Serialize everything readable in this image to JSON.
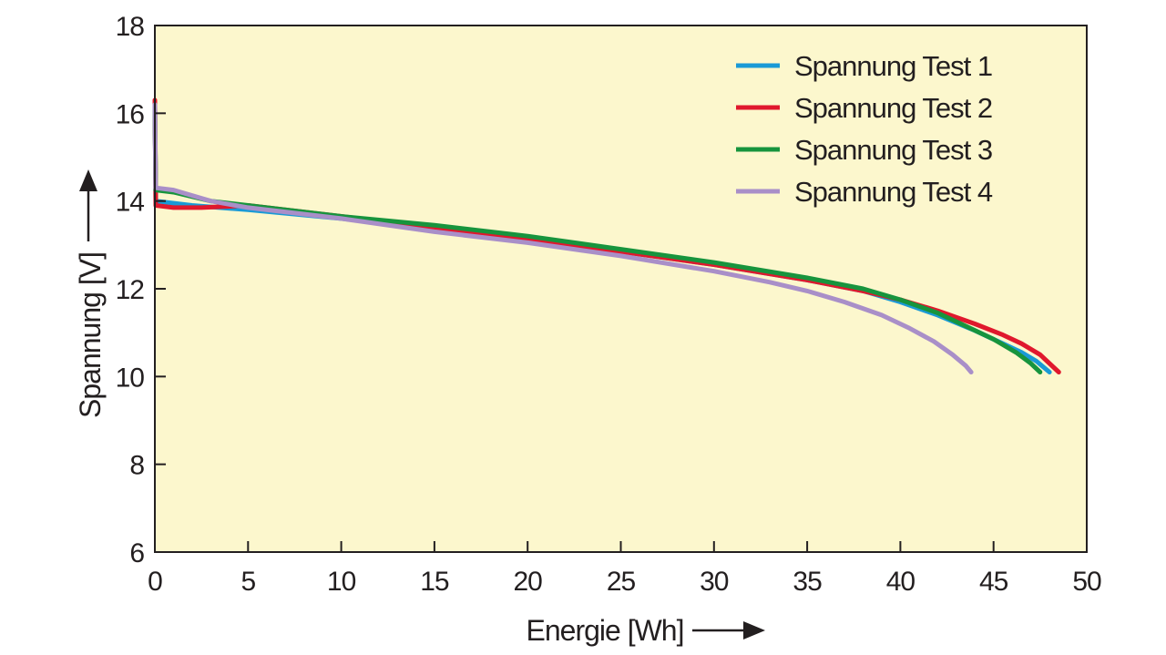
{
  "chart_data": {
    "type": "line",
    "xlabel": "Energie [Wh]",
    "ylabel": "Spannung [V]",
    "xlim": [
      0,
      50
    ],
    "ylim": [
      6,
      18
    ],
    "xticks": [
      0,
      5,
      10,
      15,
      20,
      25,
      30,
      35,
      40,
      45,
      50
    ],
    "yticks": [
      6,
      8,
      10,
      12,
      14,
      16,
      18
    ],
    "grid": false,
    "legend_position": "top-right",
    "background_color": "#fcf7cd",
    "series": [
      {
        "name": "Spannung Test 1",
        "color": "#1a9ad6",
        "points": [
          [
            0,
            16.2
          ],
          [
            0.05,
            14.0
          ],
          [
            2,
            13.9
          ],
          [
            5,
            13.8
          ],
          [
            10,
            13.6
          ],
          [
            15,
            13.35
          ],
          [
            20,
            13.1
          ],
          [
            25,
            12.85
          ],
          [
            30,
            12.55
          ],
          [
            35,
            12.2
          ],
          [
            38,
            11.95
          ],
          [
            40,
            11.7
          ],
          [
            42,
            11.4
          ],
          [
            44,
            11.05
          ],
          [
            45.5,
            10.75
          ],
          [
            46.5,
            10.55
          ],
          [
            47.3,
            10.35
          ],
          [
            48.0,
            10.1
          ]
        ]
      },
      {
        "name": "Spannung Test 2",
        "color": "#e0182d",
        "points": [
          [
            0,
            16.3
          ],
          [
            0.05,
            13.9
          ],
          [
            1,
            13.85
          ],
          [
            2.5,
            13.85
          ],
          [
            5,
            13.9
          ],
          [
            10,
            13.65
          ],
          [
            15,
            13.4
          ],
          [
            20,
            13.15
          ],
          [
            25,
            12.85
          ],
          [
            30,
            12.55
          ],
          [
            35,
            12.2
          ],
          [
            38,
            11.95
          ],
          [
            40,
            11.75
          ],
          [
            42,
            11.5
          ],
          [
            44,
            11.2
          ],
          [
            45.5,
            10.95
          ],
          [
            46.5,
            10.75
          ],
          [
            47.5,
            10.5
          ],
          [
            48.5,
            10.1
          ]
        ]
      },
      {
        "name": "Spannung Test 3",
        "color": "#17943d",
        "points": [
          [
            0,
            16.1
          ],
          [
            0.05,
            14.25
          ],
          [
            1,
            14.2
          ],
          [
            3,
            14.0
          ],
          [
            5,
            13.9
          ],
          [
            10,
            13.65
          ],
          [
            15,
            13.45
          ],
          [
            20,
            13.2
          ],
          [
            25,
            12.9
          ],
          [
            30,
            12.6
          ],
          [
            35,
            12.25
          ],
          [
            38,
            12.0
          ],
          [
            40,
            11.75
          ],
          [
            42,
            11.45
          ],
          [
            43.5,
            11.15
          ],
          [
            45,
            10.85
          ],
          [
            46.2,
            10.55
          ],
          [
            47.0,
            10.3
          ],
          [
            47.5,
            10.1
          ]
        ]
      },
      {
        "name": "Spannung Test 4",
        "color": "#a98fc8",
        "points": [
          [
            0,
            16.2
          ],
          [
            0.05,
            14.3
          ],
          [
            1,
            14.25
          ],
          [
            3,
            14.0
          ],
          [
            5,
            13.85
          ],
          [
            10,
            13.6
          ],
          [
            15,
            13.3
          ],
          [
            20,
            13.05
          ],
          [
            25,
            12.75
          ],
          [
            30,
            12.4
          ],
          [
            33,
            12.15
          ],
          [
            35,
            11.95
          ],
          [
            37,
            11.7
          ],
          [
            39,
            11.4
          ],
          [
            40.5,
            11.1
          ],
          [
            41.8,
            10.8
          ],
          [
            42.8,
            10.5
          ],
          [
            43.5,
            10.25
          ],
          [
            43.8,
            10.1
          ]
        ]
      }
    ]
  }
}
